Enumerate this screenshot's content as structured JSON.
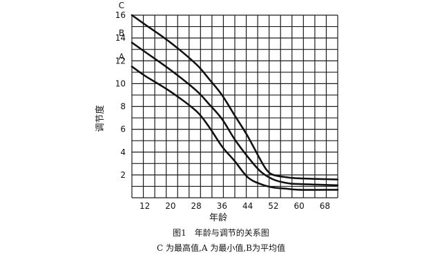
{
  "chart_data": {
    "type": "line",
    "caption": "图1　年龄与调节的关系图",
    "note": "C 为最高值,A 为最小值,B为平均值",
    "xlabel": "年龄",
    "ylabel": "调节度",
    "x_ticks": [
      12,
      20,
      28,
      36,
      44,
      52,
      60,
      68
    ],
    "y_ticks": [
      2,
      4,
      6,
      8,
      10,
      12,
      14,
      16
    ],
    "xlim": [
      8,
      72
    ],
    "ylim": [
      0,
      16
    ],
    "grid": true,
    "series": [
      {
        "name": "C",
        "x": [
          8,
          12,
          20,
          28,
          32,
          36,
          40,
          44,
          48,
          50,
          52,
          56,
          60,
          72
        ],
        "y": [
          16.0,
          15.2,
          13.6,
          11.7,
          10.4,
          9.0,
          7.2,
          5.4,
          3.3,
          2.4,
          2.0,
          1.8,
          1.7,
          1.6
        ]
      },
      {
        "name": "B",
        "x": [
          8,
          12,
          20,
          28,
          32,
          36,
          40,
          44,
          48,
          52,
          56,
          60,
          72
        ],
        "y": [
          13.6,
          12.8,
          11.2,
          9.4,
          8.2,
          6.9,
          5.1,
          3.6,
          2.3,
          1.6,
          1.3,
          1.2,
          1.1
        ]
      },
      {
        "name": "A",
        "x": [
          8,
          12,
          20,
          28,
          32,
          36,
          40,
          44,
          48,
          52,
          56,
          60,
          72
        ],
        "y": [
          11.5,
          10.7,
          9.3,
          7.6,
          6.2,
          4.5,
          3.2,
          1.8,
          1.2,
          0.9,
          0.8,
          0.7,
          0.7
        ]
      }
    ]
  }
}
